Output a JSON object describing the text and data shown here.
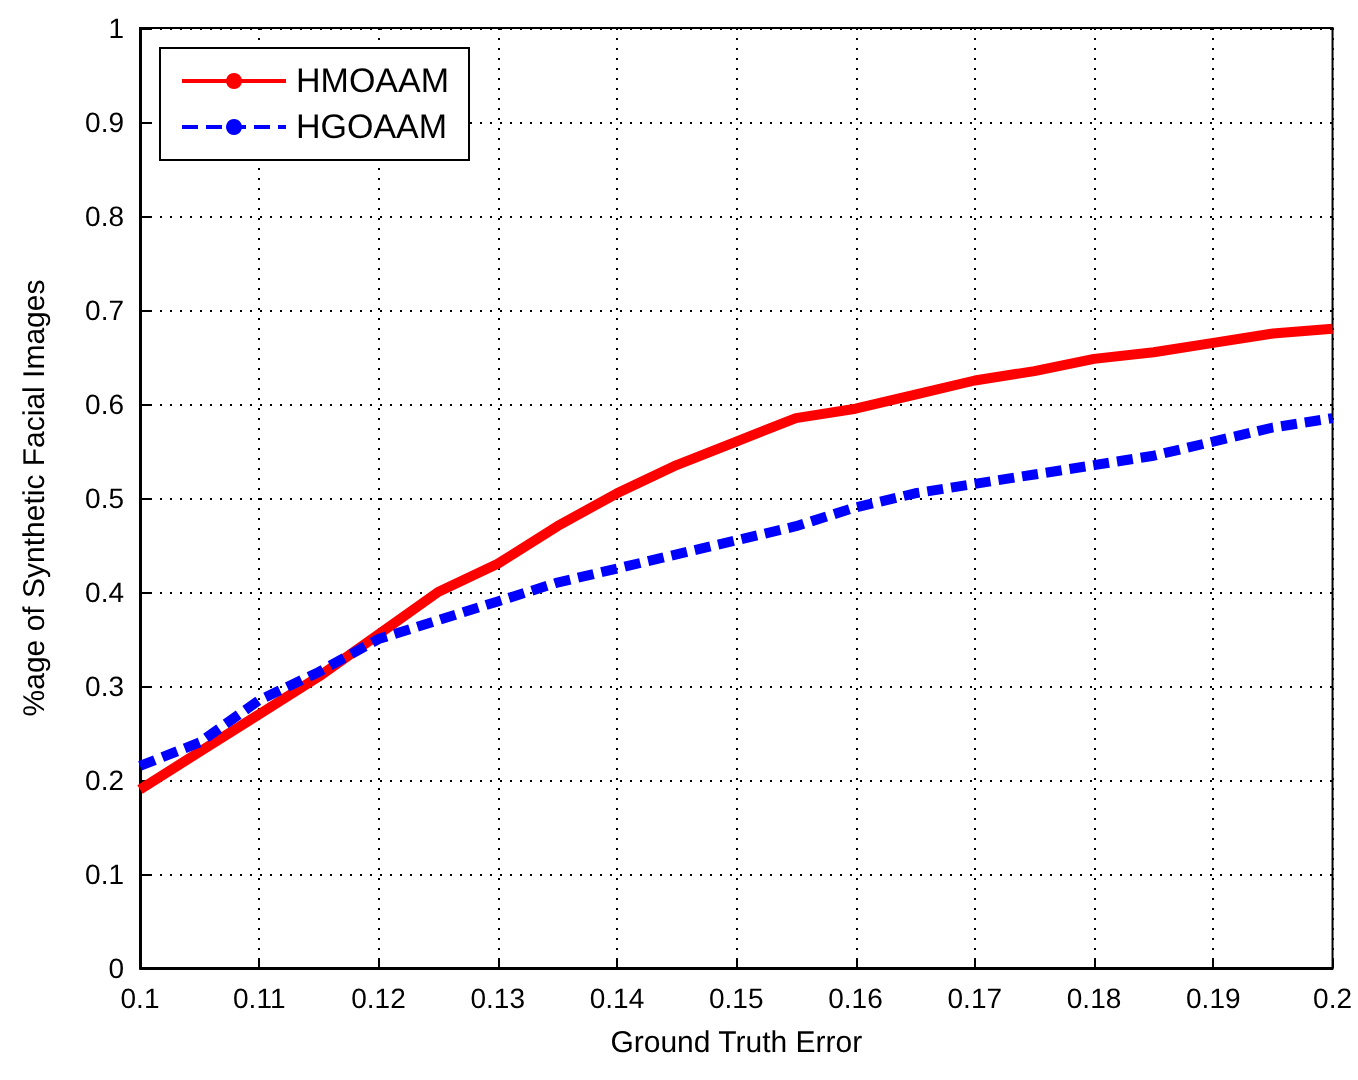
{
  "chart_data": {
    "type": "line",
    "xlabel": "Ground Truth Error",
    "ylabel": "%age of Synthetic Facial Images",
    "x": [
      0.1,
      0.105,
      0.11,
      0.115,
      0.12,
      0.125,
      0.13,
      0.135,
      0.14,
      0.145,
      0.15,
      0.155,
      0.16,
      0.165,
      0.17,
      0.175,
      0.18,
      0.185,
      0.19,
      0.195,
      0.2
    ],
    "series": [
      {
        "name": "HMOAAM",
        "color": "#ff0000",
        "line_style": "solid",
        "values": [
          0.19,
          0.23,
          0.27,
          0.31,
          0.355,
          0.4,
          0.43,
          0.47,
          0.505,
          0.535,
          0.56,
          0.585,
          0.595,
          0.61,
          0.625,
          0.635,
          0.648,
          0.655,
          0.665,
          0.675,
          0.68
        ]
      },
      {
        "name": "HGOAAM",
        "color": "#0000ff",
        "line_style": "dashed",
        "values": [
          0.215,
          0.24,
          0.285,
          0.315,
          0.35,
          0.37,
          0.39,
          0.41,
          0.425,
          0.44,
          0.455,
          0.47,
          0.49,
          0.505,
          0.515,
          0.525,
          0.535,
          0.545,
          0.56,
          0.575,
          0.585
        ]
      }
    ],
    "xlim": [
      0.1,
      0.2
    ],
    "xticks": [
      0.1,
      0.11,
      0.12,
      0.13,
      0.14,
      0.15,
      0.16,
      0.17,
      0.18,
      0.19,
      0.2
    ],
    "ylim": [
      0,
      1
    ],
    "yticks": [
      0,
      0.1,
      0.2,
      0.3,
      0.4,
      0.5,
      0.6,
      0.7,
      0.8,
      0.9,
      1
    ],
    "grid": true,
    "legend": "top left",
    "marker": "none"
  }
}
